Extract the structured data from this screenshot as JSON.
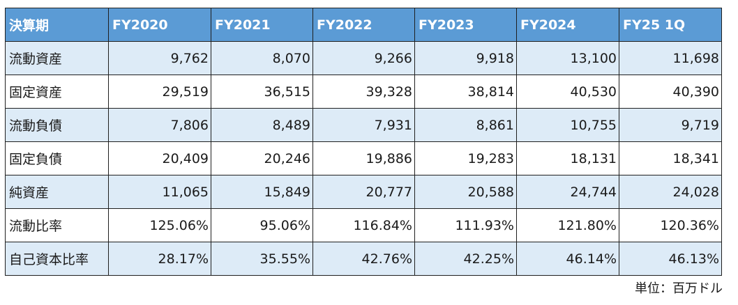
{
  "table": {
    "headers": [
      "決算期",
      "FY2020",
      "FY2021",
      "FY2022",
      "FY2023",
      "FY2024",
      "FY25 1Q"
    ],
    "rows": [
      {
        "label": "流動資産",
        "values": [
          "9,762",
          "8,070",
          "9,266",
          "9,918",
          "13,100",
          "11,698"
        ]
      },
      {
        "label": "固定資産",
        "values": [
          "29,519",
          "36,515",
          "39,328",
          "38,814",
          "40,530",
          "40,390"
        ]
      },
      {
        "label": "流動負債",
        "values": [
          "7,806",
          "8,489",
          "7,931",
          "8,861",
          "10,755",
          "9,719"
        ]
      },
      {
        "label": "固定負債",
        "values": [
          "20,409",
          "20,246",
          "19,886",
          "19,283",
          "18,131",
          "18,341"
        ]
      },
      {
        "label": "純資産",
        "values": [
          "11,065",
          "15,849",
          "20,777",
          "20,588",
          "24,744",
          "24,028"
        ]
      },
      {
        "label": "流動比率",
        "values": [
          "125.06%",
          "95.06%",
          "116.84%",
          "111.93%",
          "121.80%",
          "120.36%"
        ]
      },
      {
        "label": "自己資本比率",
        "values": [
          "28.17%",
          "35.55%",
          "42.76%",
          "42.25%",
          "46.14%",
          "46.13%"
        ]
      }
    ]
  },
  "unit_note": "単位：百万ドル",
  "colors": {
    "header_bg": "#5b9bd5",
    "header_text": "#ffffff",
    "band_bg": "#ddebf7",
    "border": "#1f1f1f"
  }
}
